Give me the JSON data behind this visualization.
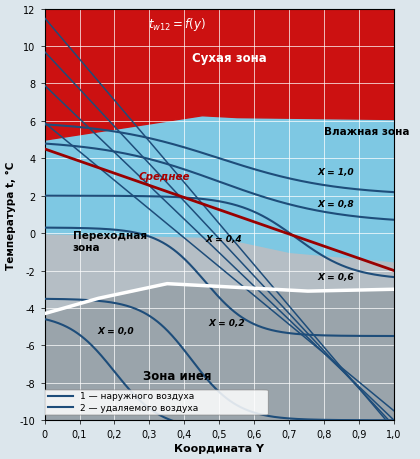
{
  "xlim": [
    0,
    1.0
  ],
  "ylim": [
    -10,
    12
  ],
  "xticks": [
    0,
    0.1,
    0.2,
    0.3,
    0.4,
    0.5,
    0.6,
    0.7,
    0.8,
    0.9,
    1.0
  ],
  "yticks": [
    -10,
    -8,
    -6,
    -4,
    -2,
    0,
    2,
    4,
    6,
    8,
    10,
    12
  ],
  "xlabel": "Координата Y",
  "ylabel": "Температура t, °C",
  "color_red": "#cc1111",
  "color_lightblue": "#7ec8e3",
  "color_gray_transition": "#b5bec5",
  "color_gray_frost": "#9aa4ab",
  "color_blue_line": "#1e4d7a",
  "color_white_boundary": "#ffffff",
  "bg_color": "#dce6ec",
  "title_formula": "$t_{w12} = f(y)$",
  "zone_dry": "Сухая зона",
  "zone_humid": "Влажная зона",
  "zone_transition": "Переходная\nзона",
  "zone_frost": "Зона инея",
  "label_sredne": "Среднее",
  "legend_1": "1 — наружного воздуха",
  "legend_2": "2 — удаляемого воздуха"
}
